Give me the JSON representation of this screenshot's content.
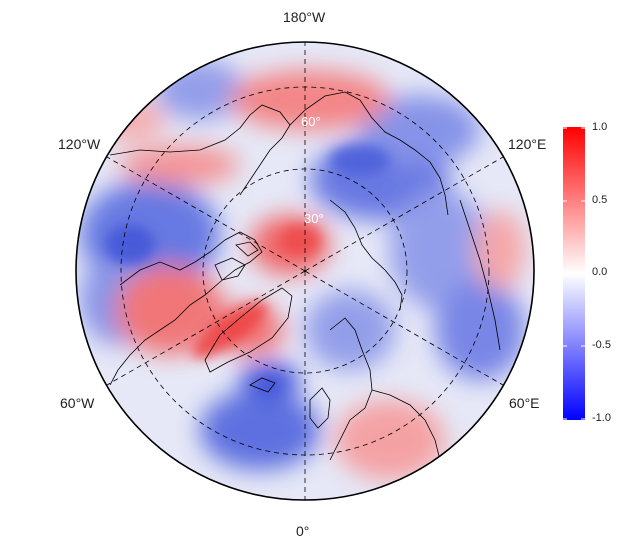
{
  "map": {
    "projection": "north-polar-stereographic",
    "longitude_labels": {
      "top": "180°W",
      "upper_left": "120°W",
      "upper_right": "120°E",
      "lower_left": "60°W",
      "lower_right": "60°E",
      "bottom": "0°"
    },
    "latitude_labels": [
      "60°",
      "30°"
    ],
    "latitude_label_color": "#ffffff",
    "graticule_style": "dashed"
  },
  "colorbar": {
    "ticks": [
      "1.0",
      "0.5",
      "0.0",
      "-0.5",
      "-1.0"
    ],
    "min": -1.0,
    "max": 1.0,
    "colors": {
      "high": "#ff0000",
      "mid": "#ffffff",
      "low": "#0000ff"
    }
  }
}
